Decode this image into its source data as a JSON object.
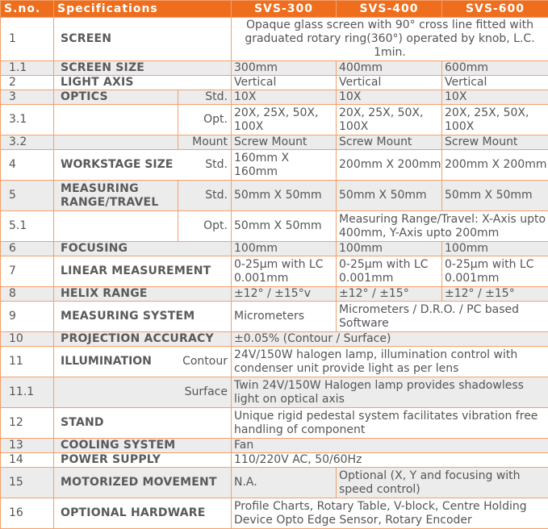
{
  "header": {
    "sno": "S.no.",
    "specifications": "Specifications",
    "models": [
      "SVS-300",
      "SVS-400",
      "SVS-600"
    ]
  },
  "rows": {
    "r1": {
      "no": "1",
      "spec": "SCREEN",
      "all": "Opaque glass screen with 90° cross line fitted with graduated rotary ring(360°) operated by knob, L.C. 1min."
    },
    "r1_1": {
      "no": "1.1",
      "spec": "SCREEN SIZE",
      "v300": "300mm",
      "v400": "400mm",
      "v600": "600mm"
    },
    "r2": {
      "no": "2",
      "spec": "LIGHT AXIS",
      "v300": "Vertical",
      "v400": "Vertical",
      "v600": "Vertical"
    },
    "r3": {
      "no": "3",
      "spec": "OPTICS",
      "sub": "Std.",
      "v300": "10X",
      "v400": "10X",
      "v600": "10X"
    },
    "r3_1": {
      "no": "3.1",
      "sub": "Opt.",
      "v300": "20X, 25X, 50X, 100X",
      "v400": "20X, 25X, 50X, 100X",
      "v600": "20X, 25X, 50X, 100X"
    },
    "r3_2": {
      "no": "3.2",
      "sub": "Mount",
      "v300": "Screw Mount",
      "v400": "Screw Mount",
      "v600": "Screw Mount"
    },
    "r4": {
      "no": "4",
      "spec": "WORKSTAGE SIZE",
      "sub": "Std.",
      "v300": "160mm X 160mm",
      "v400": "200mm X 200mm",
      "v600": "200mm X 200mm"
    },
    "r5": {
      "no": "5",
      "spec": "MEASURING RANGE/TRAVEL",
      "sub": "Std.",
      "v300": "50mm X 50mm",
      "v400": "50mm X 50mm",
      "v600": "50mm X 50mm"
    },
    "r5_1": {
      "no": "5.1",
      "sub": "Opt.",
      "v300": "50mm X 50mm",
      "v400_600": "Measuring Range/Travel: X-Axis upto 400mm, Y-Axis upto 200mm"
    },
    "r6": {
      "no": "6",
      "spec": "FOCUSING",
      "v300": "100mm",
      "v400": "100mm",
      "v600": "100mm"
    },
    "r7": {
      "no": "7",
      "spec": "LINEAR MEASUREMENT",
      "v300": "0-25µm with LC 0.001mm",
      "v400": "0-25µm with LC 0.001mm",
      "v600": "0-25µm with LC 0.001mm"
    },
    "r8": {
      "no": "8",
      "spec": "HELIX RANGE",
      "v300": "±12° / ±15°v",
      "v400": "±12° / ±15°",
      "v600": "±12° / ±15°"
    },
    "r9": {
      "no": "9",
      "spec": "MEASURING SYSTEM",
      "v300": "Micrometers",
      "v400_600": "Micrometers / D.R.O. / PC based Software"
    },
    "r10": {
      "no": "10",
      "spec": "PROJECTION ACCURACY",
      "all": "±0.05% (Contour / Surface)"
    },
    "r11": {
      "no": "11",
      "spec": "ILLUMINATION",
      "sub": "Contour",
      "all": "24V/150W halogen lamp, illumination control with condenser unit provide light as per lens"
    },
    "r11_1": {
      "no": "11.1",
      "sub": "Surface",
      "all": "Twin 24V/150W Halogen lamp provides shadowless light on optical axis"
    },
    "r12": {
      "no": "12",
      "spec": "STAND",
      "all": "Unique rigid pedestal system facilitates vibration free handling of component"
    },
    "r13": {
      "no": "13",
      "spec": "COOLING SYSTEM",
      "all": "Fan"
    },
    "r14": {
      "no": "14",
      "spec": "POWER SUPPLY",
      "all": "110/220V AC, 50/60Hz"
    },
    "r15": {
      "no": "15",
      "spec": "MOTORIZED MOVEMENT",
      "v300": "N.A.",
      "v400_600": "Optional (X, Y and focusing with speed control)"
    },
    "r16": {
      "no": "16",
      "spec": "OPTIONAL HARDWARE",
      "all": "Profile Charts, Rotary Table, V-block, Centre Holding Device Opto Edge Sensor, Rotary Encoder"
    }
  }
}
